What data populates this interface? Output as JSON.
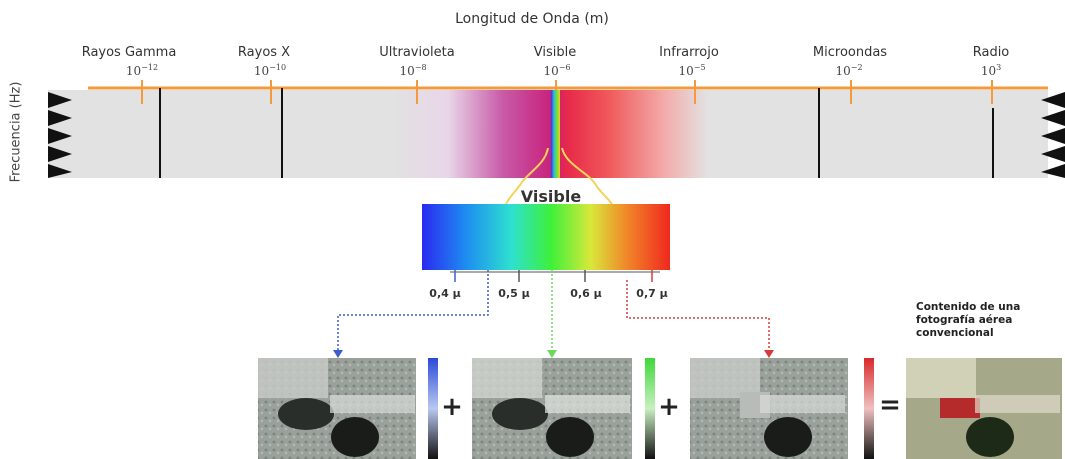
{
  "title": "Longitud de Onda (m)",
  "frequency_label": "Frecuencia (Hz)",
  "bands": [
    {
      "name": "Rayos Gamma",
      "exp_base": "10",
      "exp_power": "−12"
    },
    {
      "name": "Rayos X",
      "exp_base": "10",
      "exp_power": "−10"
    },
    {
      "name": "Ultravioleta",
      "exp_base": "10",
      "exp_power": "−8"
    },
    {
      "name": "Visible",
      "exp_base": "10",
      "exp_power": "−6"
    },
    {
      "name": "Infrarrojo",
      "exp_base": "10",
      "exp_power": "−5"
    },
    {
      "name": "Microondas",
      "exp_base": "10",
      "exp_power": "−2"
    },
    {
      "name": "Radio",
      "exp_base": "10",
      "exp_power": "3"
    }
  ],
  "visible_title": "Visible",
  "microns": [
    "0,4 µ",
    "0,5 µ",
    "0,6 µ",
    "0,7 µ"
  ],
  "operators": [
    "+",
    "+",
    "="
  ],
  "note_lines": [
    "Contenido de una",
    "fotografía aérea",
    "convencional"
  ],
  "colors": {
    "orange": "#f39a3c",
    "blue": "#3a5fc8",
    "green": "#6ed85a",
    "red": "#d83a3a",
    "band_gray": "#e0e0e0",
    "visible_curve": "#f3d35a"
  }
}
